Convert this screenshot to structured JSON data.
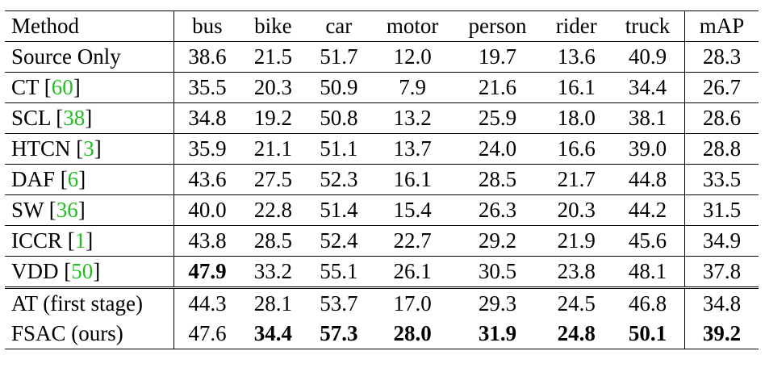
{
  "table": {
    "headers": [
      "Method",
      "bus",
      "bike",
      "car",
      "motor",
      "person",
      "rider",
      "truck",
      "mAP"
    ],
    "rows": [
      {
        "method": "Source Only",
        "cite": "",
        "values": [
          "38.6",
          "21.5",
          "51.7",
          "12.0",
          "19.7",
          "13.6",
          "40.9",
          "28.3"
        ],
        "bold": []
      },
      {
        "method": "CT",
        "cite": "60",
        "values": [
          "35.5",
          "20.3",
          "50.9",
          "7.9",
          "21.6",
          "16.1",
          "34.4",
          "26.7"
        ],
        "bold": []
      },
      {
        "method": "SCL",
        "cite": "38",
        "values": [
          "34.8",
          "19.2",
          "50.8",
          "13.2",
          "25.9",
          "18.0",
          "38.1",
          "28.6"
        ],
        "bold": []
      },
      {
        "method": "HTCN",
        "cite": "3",
        "values": [
          "35.9",
          "21.1",
          "51.1",
          "13.7",
          "24.0",
          "16.6",
          "39.0",
          "28.8"
        ],
        "bold": []
      },
      {
        "method": "DAF",
        "cite": "6",
        "values": [
          "43.6",
          "27.5",
          "52.3",
          "16.1",
          "28.5",
          "21.7",
          "44.8",
          "33.5"
        ],
        "bold": []
      },
      {
        "method": "SW",
        "cite": "36",
        "values": [
          "40.0",
          "22.8",
          "51.4",
          "15.4",
          "26.3",
          "20.3",
          "44.2",
          "31.5"
        ],
        "bold": []
      },
      {
        "method": "ICCR",
        "cite": "1",
        "values": [
          "43.8",
          "28.5",
          "52.4",
          "22.7",
          "29.2",
          "21.9",
          "45.6",
          "34.9"
        ],
        "bold": []
      },
      {
        "method": "VDD",
        "cite": "50",
        "values": [
          "47.9",
          "33.2",
          "55.1",
          "26.1",
          "30.5",
          "23.8",
          "48.1",
          "37.8"
        ],
        "bold": [
          0
        ]
      },
      {
        "method": "AT (first stage)",
        "cite": "",
        "values": [
          "44.3",
          "28.1",
          "53.7",
          "17.0",
          "29.3",
          "24.5",
          "46.8",
          "34.8"
        ],
        "bold": []
      },
      {
        "method": "FSAC (ours)",
        "cite": "",
        "values": [
          "47.6",
          "34.4",
          "57.3",
          "28.0",
          "31.9",
          "24.8",
          "50.1",
          "39.2"
        ],
        "bold": [
          1,
          2,
          3,
          4,
          5,
          6,
          7
        ]
      }
    ]
  },
  "colors": {
    "citation": "#1fbf1f",
    "text": "#000000"
  }
}
